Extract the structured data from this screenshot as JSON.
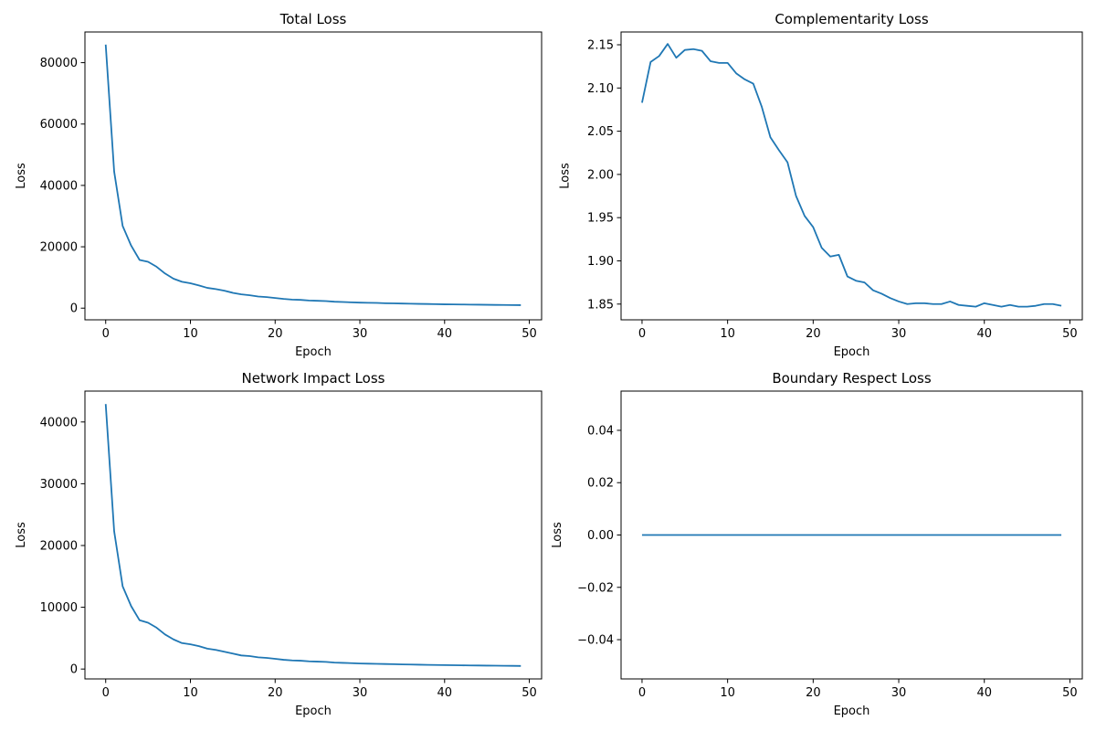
{
  "chart_data": [
    {
      "type": "line",
      "title": "Total Loss",
      "xlabel": "Epoch",
      "ylabel": "Loss",
      "xlim": [
        -2.45,
        51.45
      ],
      "ylim": [
        -3800,
        90000
      ],
      "xticks": [
        0,
        10,
        20,
        30,
        40,
        50
      ],
      "xtick_labels": [
        "0",
        "10",
        "20",
        "30",
        "40",
        "50"
      ],
      "yticks": [
        0,
        20000,
        40000,
        60000,
        80000
      ],
      "ytick_labels": [
        "0",
        "20000",
        "40000",
        "60000",
        "80000"
      ],
      "grid": false,
      "series": [
        {
          "color": "#1f77b4",
          "x": [
            0,
            1,
            2,
            3,
            4,
            5,
            6,
            7,
            8,
            9,
            10,
            11,
            12,
            13,
            14,
            15,
            16,
            17,
            18,
            19,
            20,
            21,
            22,
            23,
            24,
            25,
            26,
            27,
            28,
            29,
            30,
            31,
            32,
            33,
            34,
            35,
            36,
            37,
            38,
            39,
            40,
            41,
            42,
            43,
            44,
            45,
            46,
            47,
            48,
            49
          ],
          "y": [
            85900,
            44500,
            26800,
            20400,
            15700,
            15100,
            13500,
            11300,
            9600,
            8600,
            8100,
            7400,
            6600,
            6200,
            5700,
            5000,
            4500,
            4200,
            3800,
            3600,
            3300,
            3000,
            2800,
            2700,
            2500,
            2400,
            2300,
            2100,
            2000,
            1900,
            1800,
            1750,
            1700,
            1600,
            1550,
            1500,
            1450,
            1400,
            1350,
            1300,
            1250,
            1220,
            1190,
            1160,
            1130,
            1100,
            1060,
            1030,
            1010,
            980
          ]
        }
      ]
    },
    {
      "type": "line",
      "title": "Complementarity Loss",
      "xlabel": "Epoch",
      "ylabel": "Loss",
      "xlim": [
        -2.45,
        51.45
      ],
      "ylim": [
        1.8318,
        2.1648
      ],
      "xticks": [
        0,
        10,
        20,
        30,
        40,
        50
      ],
      "xtick_labels": [
        "0",
        "10",
        "20",
        "30",
        "40",
        "50"
      ],
      "yticks": [
        1.85,
        1.9,
        1.95,
        2.0,
        2.05,
        2.1,
        2.15
      ],
      "ytick_labels": [
        "1.85",
        "1.90",
        "1.95",
        "2.00",
        "2.05",
        "2.10",
        "2.15"
      ],
      "grid": false,
      "series": [
        {
          "color": "#1f77b4",
          "x": [
            0,
            1,
            2,
            3,
            4,
            5,
            6,
            7,
            8,
            9,
            10,
            11,
            12,
            13,
            14,
            15,
            16,
            17,
            18,
            19,
            20,
            21,
            22,
            23,
            24,
            25,
            26,
            27,
            28,
            29,
            30,
            31,
            32,
            33,
            34,
            35,
            36,
            37,
            38,
            39,
            40,
            41,
            42,
            43,
            44,
            45,
            46,
            47,
            48,
            49
          ],
          "y": [
            2.083,
            2.13,
            2.137,
            2.151,
            2.135,
            2.144,
            2.145,
            2.143,
            2.131,
            2.129,
            2.129,
            2.117,
            2.11,
            2.105,
            2.078,
            2.043,
            2.028,
            2.014,
            1.975,
            1.952,
            1.939,
            1.915,
            1.905,
            1.907,
            1.882,
            1.877,
            1.875,
            1.866,
            1.862,
            1.857,
            1.853,
            1.85,
            1.851,
            1.851,
            1.85,
            1.85,
            1.853,
            1.849,
            1.848,
            1.847,
            1.851,
            1.849,
            1.847,
            1.849,
            1.847,
            1.847,
            1.848,
            1.85,
            1.85,
            1.848
          ]
        }
      ]
    },
    {
      "type": "line",
      "title": "Network Impact Loss",
      "xlabel": "Epoch",
      "ylabel": "Loss",
      "xlim": [
        -2.45,
        51.45
      ],
      "ylim": [
        -1600,
        45000
      ],
      "xticks": [
        0,
        10,
        20,
        30,
        40,
        50
      ],
      "xtick_labels": [
        "0",
        "10",
        "20",
        "30",
        "40",
        "50"
      ],
      "yticks": [
        0,
        10000,
        20000,
        30000,
        40000
      ],
      "ytick_labels": [
        "0",
        "10000",
        "20000",
        "30000",
        "40000"
      ],
      "grid": false,
      "series": [
        {
          "color": "#1f77b4",
          "x": [
            0,
            1,
            2,
            3,
            4,
            5,
            6,
            7,
            8,
            9,
            10,
            11,
            12,
            13,
            14,
            15,
            16,
            17,
            18,
            19,
            20,
            21,
            22,
            23,
            24,
            25,
            26,
            27,
            28,
            29,
            30,
            31,
            32,
            33,
            34,
            35,
            36,
            37,
            38,
            39,
            40,
            41,
            42,
            43,
            44,
            45,
            46,
            47,
            48,
            49
          ],
          "y": [
            42900,
            22300,
            13400,
            10200,
            7900,
            7500,
            6700,
            5600,
            4800,
            4200,
            4000,
            3700,
            3300,
            3100,
            2800,
            2500,
            2200,
            2100,
            1900,
            1800,
            1650,
            1500,
            1400,
            1350,
            1250,
            1200,
            1150,
            1050,
            1000,
            950,
            900,
            870,
            840,
            810,
            780,
            750,
            730,
            700,
            680,
            660,
            640,
            620,
            600,
            585,
            570,
            555,
            540,
            525,
            515,
            500
          ]
        }
      ]
    },
    {
      "type": "line",
      "title": "Boundary Respect Loss",
      "xlabel": "Epoch",
      "ylabel": "Loss",
      "xlim": [
        -2.45,
        51.45
      ],
      "ylim": [
        -0.055,
        0.055
      ],
      "xticks": [
        0,
        10,
        20,
        30,
        40,
        50
      ],
      "xtick_labels": [
        "0",
        "10",
        "20",
        "30",
        "40",
        "50"
      ],
      "yticks": [
        -0.04,
        -0.02,
        0.0,
        0.02,
        0.04
      ],
      "ytick_labels": [
        "−0.04",
        "−0.02",
        "0.00",
        "0.02",
        "0.04"
      ],
      "grid": false,
      "series": [
        {
          "color": "#1f77b4",
          "x": [
            0,
            1,
            2,
            3,
            4,
            5,
            6,
            7,
            8,
            9,
            10,
            11,
            12,
            13,
            14,
            15,
            16,
            17,
            18,
            19,
            20,
            21,
            22,
            23,
            24,
            25,
            26,
            27,
            28,
            29,
            30,
            31,
            32,
            33,
            34,
            35,
            36,
            37,
            38,
            39,
            40,
            41,
            42,
            43,
            44,
            45,
            46,
            47,
            48,
            49
          ],
          "y": [
            0,
            0,
            0,
            0,
            0,
            0,
            0,
            0,
            0,
            0,
            0,
            0,
            0,
            0,
            0,
            0,
            0,
            0,
            0,
            0,
            0,
            0,
            0,
            0,
            0,
            0,
            0,
            0,
            0,
            0,
            0,
            0,
            0,
            0,
            0,
            0,
            0,
            0,
            0,
            0,
            0,
            0,
            0,
            0,
            0,
            0,
            0,
            0,
            0,
            0
          ]
        }
      ]
    }
  ]
}
